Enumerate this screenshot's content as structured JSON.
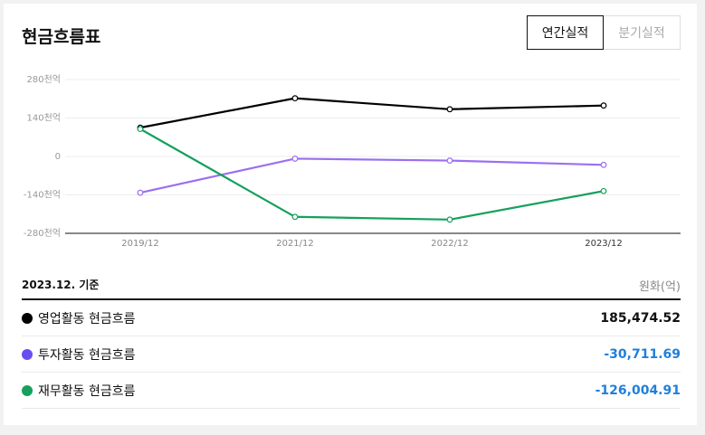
{
  "header": {
    "title": "현금흐름표",
    "tabs": [
      {
        "label": "연간실적",
        "active": true
      },
      {
        "label": "분기실적",
        "active": false
      }
    ]
  },
  "colors": {
    "operating": "#000000",
    "investing": "#9b6ff0",
    "financing": "#16a05d",
    "investing_dot": "#6a4df0",
    "value_positive": "#111111",
    "value_negative": "#1f7fdb"
  },
  "chart_data": {
    "type": "line",
    "x": [
      "2019/12",
      "2021/12",
      "2022/12",
      "2023/12"
    ],
    "y_ticks": [
      "280천억",
      "140천억",
      "0",
      "-140천억",
      "-280천억"
    ],
    "ylim": [
      -280000,
      280000
    ],
    "grid": true,
    "series": [
      {
        "name": "영업활동 현금흐름",
        "values": [
          105000,
          212000,
          172000,
          185474.52
        ]
      },
      {
        "name": "투자활동 현금흐름",
        "values": [
          -132000,
          -8000,
          -15000,
          -30711.69
        ]
      },
      {
        "name": "재무활동 현금흐름",
        "values": [
          100000,
          -220000,
          -230000,
          -126004.91
        ]
      }
    ]
  },
  "summary": {
    "basis": "2023.12. 기준",
    "unit": "원화(억)",
    "rows": [
      {
        "label": "영업활동 현금흐름",
        "value": "185,474.52"
      },
      {
        "label": "투자활동 현금흐름",
        "value": "-30,711.69"
      },
      {
        "label": "재무활동 현금흐름",
        "value": "-126,004.91"
      }
    ]
  }
}
